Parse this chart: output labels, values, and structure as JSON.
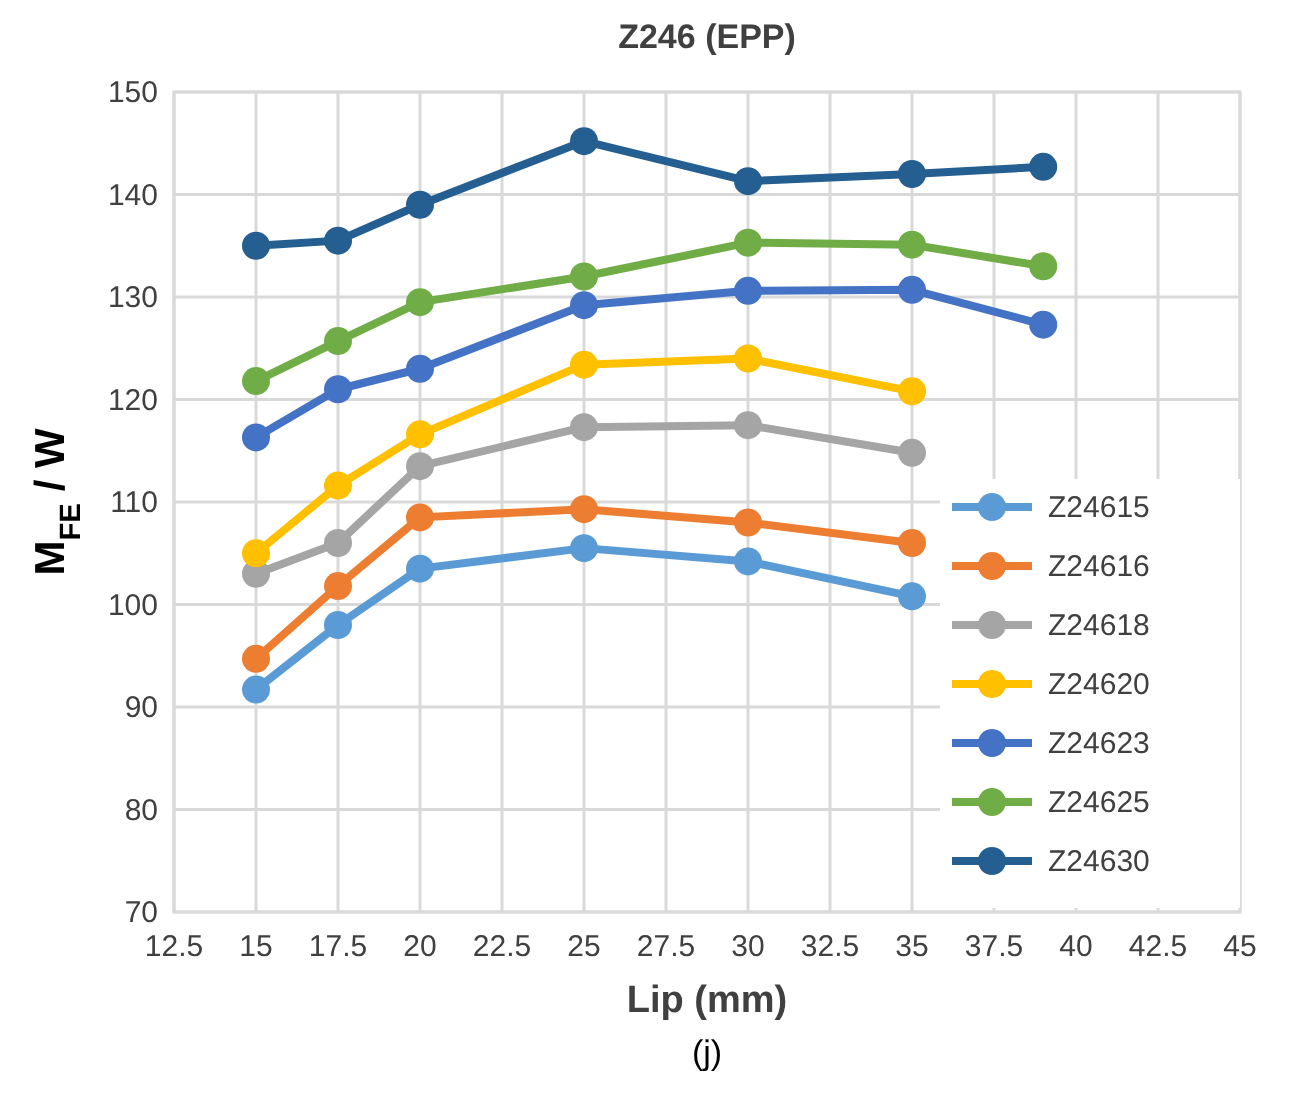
{
  "chart_data": {
    "type": "line",
    "title": "Z246 (EPP)",
    "xlabel": "Lip (mm)",
    "ylabel": "M$_{FE}$ / W",
    "annotations": [
      "(j)"
    ],
    "xlim": [
      12.5,
      45
    ],
    "xticks": [
      12.5,
      15,
      17.5,
      20,
      22.5,
      25,
      27.5,
      30,
      32.5,
      35,
      37.5,
      40,
      42.5,
      45
    ],
    "ylim": [
      70,
      150
    ],
    "yticks": [
      70,
      80,
      90,
      100,
      110,
      120,
      130,
      140,
      150
    ],
    "grid": true,
    "legend": "bottom right",
    "marker": "circle",
    "line_style": "solid",
    "series": [
      {
        "name": "Z24615",
        "color": "#5b9bd5",
        "x": [
          15,
          17.5,
          20,
          25,
          30,
          35
        ],
        "values": [
          91.7,
          98,
          103.5,
          105.5,
          104.2,
          100.8
        ]
      },
      {
        "name": "Z24616",
        "color": "#ed7d31",
        "x": [
          15,
          17.5,
          20,
          25,
          30,
          35
        ],
        "values": [
          94.7,
          101.8,
          108.5,
          109.3,
          108,
          106
        ]
      },
      {
        "name": "Z24618",
        "color": "#a5a5a5",
        "x": [
          15,
          17.5,
          20,
          25,
          30,
          35
        ],
        "values": [
          103,
          106,
          113.5,
          117.3,
          117.5,
          114.8
        ]
      },
      {
        "name": "Z24620",
        "color": "#ffc000",
        "x": [
          15,
          17.5,
          20,
          25,
          30,
          35
        ],
        "values": [
          105,
          111.6,
          116.6,
          123.4,
          124,
          120.8
        ]
      },
      {
        "name": "Z24623",
        "color": "#4472c4",
        "x": [
          15,
          17.5,
          20,
          25,
          30,
          35,
          39
        ],
        "values": [
          116.3,
          121,
          123,
          129.2,
          130.6,
          130.7,
          127.3
        ]
      },
      {
        "name": "Z24625",
        "color": "#70ad47",
        "x": [
          15,
          17.5,
          20,
          25,
          30,
          35,
          39
        ],
        "values": [
          121.8,
          125.7,
          129.5,
          132,
          135.3,
          135.1,
          133
        ]
      },
      {
        "name": "Z24630",
        "color": "#255e91",
        "x": [
          15,
          17.5,
          20,
          25,
          30,
          35,
          39
        ],
        "values": [
          135,
          135.5,
          139,
          145.2,
          141.3,
          142,
          142.7
        ]
      }
    ]
  }
}
